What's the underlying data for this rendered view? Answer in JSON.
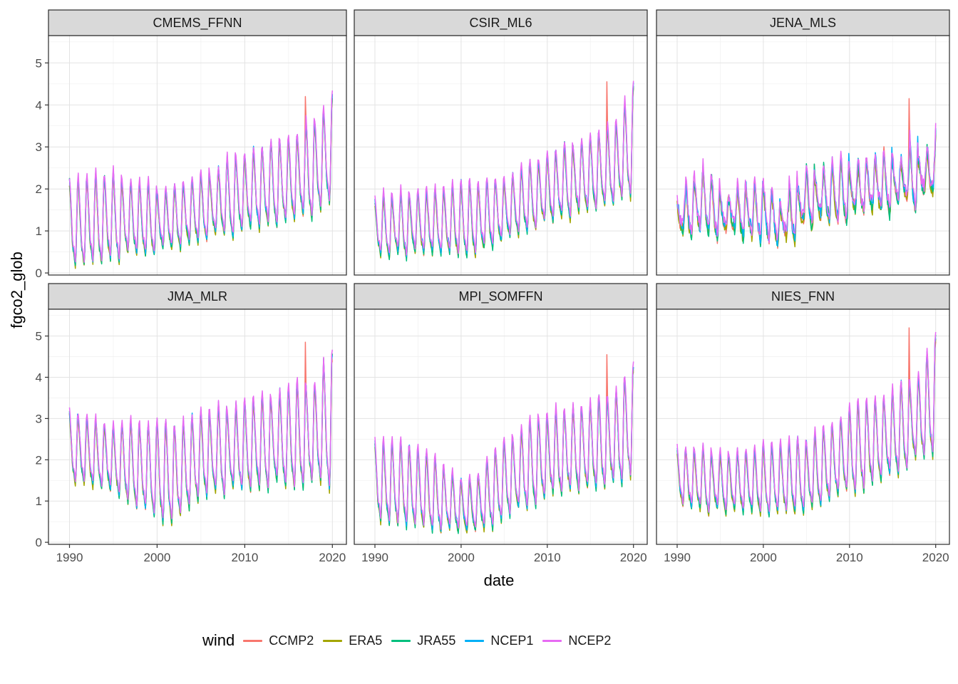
{
  "chart_data": {
    "type": "line",
    "xlabel": "date",
    "ylabel": "fgco2_glob",
    "legend": {
      "title": "wind",
      "position": "bottom"
    },
    "x_ticks": [
      1990,
      2000,
      2010,
      2020
    ],
    "x_minor_ticks": [
      1995,
      2005,
      2015
    ],
    "y_ticks": [
      0,
      1,
      2,
      3,
      4,
      5
    ],
    "y_minor_ticks": [
      0.5,
      1.5,
      2.5,
      3.5,
      4.5,
      5.5
    ],
    "x_domain": [
      1987.6,
      2021.6
    ],
    "y_domain": [
      -0.05,
      5.65
    ],
    "x_data_range": [
      1990,
      2020
    ],
    "sampling": "monthly",
    "grid": {
      "major_color": "#e3e3e3",
      "minor_color": "#f0f0f0"
    },
    "panel_border_color": "#2a2a2a",
    "strip_fill": "#d9d9d9",
    "tick_label_color": "#4d4d4d",
    "series": [
      {
        "name": "CCMP2",
        "color": "#F8766D",
        "offset": -0.1,
        "amp_scale": 0.97
      },
      {
        "name": "ERA5",
        "color": "#A3A500",
        "offset": -0.13,
        "amp_scale": 1.0
      },
      {
        "name": "JRA55",
        "color": "#00BF7D",
        "offset": -0.08,
        "amp_scale": 1.03
      },
      {
        "name": "NCEP1",
        "color": "#00B0F6",
        "offset": -0.03,
        "amp_scale": 1.0
      },
      {
        "name": "NCEP2",
        "color": "#E76BF3",
        "offset": 0.02,
        "amp_scale": 1.02
      }
    ],
    "trend_years": [
      1990,
      1993,
      1995,
      2000,
      2002,
      2005,
      2010,
      2015,
      2018,
      2020
    ],
    "facets": [
      {
        "name": "CMEMS_FFNN",
        "trend_mean": [
          1.15,
          1.25,
          1.3,
          1.25,
          1.3,
          1.55,
          1.9,
          2.2,
          2.45,
          2.9
        ],
        "trend_amplitude": [
          0.95,
          0.95,
          0.95,
          0.7,
          0.65,
          0.68,
          0.95,
          1.0,
          1.1,
          1.25
        ],
        "noise": 0.06,
        "irregular": false,
        "ccmp2_spike": {
          "x": 2016.9,
          "value": 4.2
        }
      },
      {
        "name": "CSIR_ML6",
        "trend_mean": [
          1.1,
          1.15,
          1.2,
          1.25,
          1.3,
          1.5,
          2.0,
          2.35,
          2.6,
          3.1
        ],
        "trend_amplitude": [
          0.62,
          0.7,
          0.75,
          0.8,
          0.8,
          0.75,
          0.8,
          0.9,
          1.0,
          1.25
        ],
        "noise": 0.06,
        "irregular": false,
        "ccmp2_spike": {
          "x": 2016.9,
          "value": 4.55
        }
      },
      {
        "name": "JENA_MLS",
        "trend_mean": [
          1.35,
          1.75,
          1.45,
          1.5,
          1.2,
          1.8,
          2.0,
          2.2,
          2.35,
          2.5
        ],
        "trend_amplitude": [
          0.45,
          0.6,
          0.5,
          0.55,
          0.5,
          0.6,
          0.55,
          0.6,
          0.65,
          0.6
        ],
        "noise": 0.15,
        "irregular": true,
        "ccmp2_spike": {
          "x": 2016.9,
          "value": 4.15
        }
      },
      {
        "name": "JMA_MLR",
        "trend_mean": [
          2.3,
          2.15,
          2.0,
          1.7,
          1.6,
          2.1,
          2.3,
          2.5,
          2.6,
          2.9
        ],
        "trend_amplitude": [
          0.75,
          0.85,
          0.85,
          1.1,
          1.2,
          1.0,
          1.0,
          1.1,
          1.2,
          1.5
        ],
        "noise": 0.06,
        "irregular": false,
        "ccmp2_spike": {
          "x": 2016.9,
          "value": 4.85
        }
      },
      {
        "name": "MPI_SOMFFN",
        "trend_mean": [
          1.45,
          1.4,
          1.3,
          0.9,
          0.95,
          1.5,
          2.1,
          2.3,
          2.5,
          2.9
        ],
        "trend_amplitude": [
          0.9,
          0.95,
          0.95,
          0.6,
          0.7,
          0.9,
          1.0,
          1.0,
          1.1,
          1.4
        ],
        "noise": 0.06,
        "irregular": false,
        "ccmp2_spike": {
          "x": 2016.9,
          "value": 4.55
        }
      },
      {
        "name": "NIES_FNN",
        "trend_mean": [
          1.6,
          1.5,
          1.45,
          1.5,
          1.55,
          1.6,
          2.2,
          2.6,
          3.0,
          3.5
        ],
        "trend_amplitude": [
          0.6,
          0.7,
          0.7,
          0.75,
          0.78,
          0.8,
          1.0,
          1.0,
          1.0,
          1.3
        ],
        "noise": 0.06,
        "irregular": false,
        "ccmp2_spike": {
          "x": 2016.9,
          "value": 5.2
        }
      }
    ]
  }
}
